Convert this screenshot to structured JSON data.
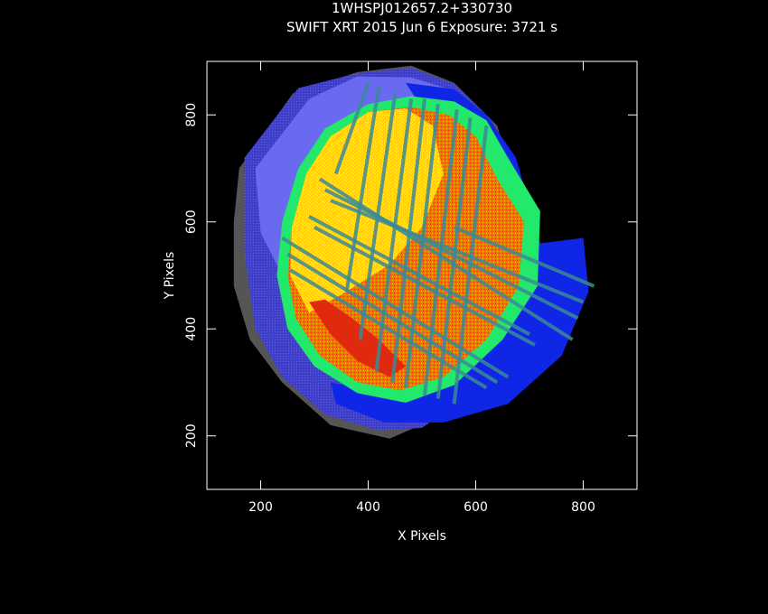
{
  "title": "1WHSPJ012657.2+330730",
  "subtitle": "SWIFT XRT   2015 Jun  6    Exposure: 3721 s",
  "colors": {
    "background": "#000000",
    "foreground": "#ffffff",
    "halo": "#555555",
    "outer_exposure": "#3e3ec8",
    "blue_ring": "#1026e6",
    "periwinkle": "#6a6af0",
    "green_ring": "#22e86c",
    "yellow": "#ffe600",
    "orange": "#e07a10",
    "red": "#e02a10",
    "stripe": "#3a8a96"
  },
  "chart_data": {
    "type": "heatmap",
    "description_kind": "exposure-map image",
    "xlabel": "X Pixels",
    "ylabel": "Y Pixels",
    "xlim": [
      100,
      900
    ],
    "ylim": [
      100,
      900
    ],
    "xticks": [
      200,
      400,
      600,
      800
    ],
    "yticks": [
      200,
      400,
      600,
      800
    ],
    "xtick_labels": [
      "200",
      "400",
      "600",
      "800"
    ],
    "ytick_labels": [
      "200",
      "400",
      "600",
      "800"
    ],
    "grid": false,
    "legend": false,
    "regions": [
      {
        "name": "halo",
        "color": "#555555",
        "polygon": [
          [
            160,
            700
          ],
          [
            260,
            840
          ],
          [
            380,
            880
          ],
          [
            480,
            892
          ],
          [
            560,
            860
          ],
          [
            640,
            780
          ],
          [
            680,
            640
          ],
          [
            660,
            460
          ],
          [
            600,
            330
          ],
          [
            520,
            230
          ],
          [
            440,
            195
          ],
          [
            330,
            220
          ],
          [
            240,
            300
          ],
          [
            180,
            380
          ],
          [
            150,
            480
          ],
          [
            150,
            600
          ]
        ]
      },
      {
        "name": "outer-exposure",
        "color": "#3e3ec8",
        "polygon": [
          [
            170,
            720
          ],
          [
            270,
            850
          ],
          [
            380,
            878
          ],
          [
            480,
            888
          ],
          [
            560,
            858
          ],
          [
            630,
            790
          ],
          [
            680,
            660
          ],
          [
            700,
            520
          ],
          [
            660,
            380
          ],
          [
            580,
            270
          ],
          [
            500,
            215
          ],
          [
            420,
            210
          ],
          [
            320,
            240
          ],
          [
            240,
            310
          ],
          [
            190,
            400
          ],
          [
            170,
            540
          ]
        ]
      },
      {
        "name": "periwinkle-field",
        "color": "#6a6af0",
        "polygon": [
          [
            190,
            700
          ],
          [
            290,
            830
          ],
          [
            380,
            872
          ],
          [
            480,
            870
          ],
          [
            545,
            850
          ],
          [
            590,
            810
          ],
          [
            560,
            650
          ],
          [
            500,
            500
          ],
          [
            420,
            420
          ],
          [
            330,
            420
          ],
          [
            250,
            480
          ],
          [
            200,
            580
          ]
        ]
      },
      {
        "name": "blue-ring",
        "color": "#1026e6",
        "polygon": [
          [
            470,
            860
          ],
          [
            560,
            848
          ],
          [
            620,
            800
          ],
          [
            675,
            720
          ],
          [
            720,
            560
          ],
          [
            800,
            570
          ],
          [
            810,
            470
          ],
          [
            760,
            350
          ],
          [
            660,
            260
          ],
          [
            540,
            225
          ],
          [
            430,
            225
          ],
          [
            340,
            260
          ],
          [
            330,
            300
          ],
          [
            430,
            280
          ],
          [
            560,
            300
          ],
          [
            640,
            380
          ],
          [
            680,
            480
          ],
          [
            640,
            620
          ],
          [
            560,
            720
          ]
        ]
      },
      {
        "name": "green-ring",
        "color": "#22e86c",
        "polygon": [
          [
            320,
            775
          ],
          [
            400,
            820
          ],
          [
            480,
            835
          ],
          [
            560,
            825
          ],
          [
            620,
            790
          ],
          [
            660,
            720
          ],
          [
            720,
            620
          ],
          [
            715,
            480
          ],
          [
            650,
            380
          ],
          [
            560,
            295
          ],
          [
            470,
            262
          ],
          [
            380,
            280
          ],
          [
            300,
            330
          ],
          [
            250,
            400
          ],
          [
            230,
            500
          ],
          [
            240,
            600
          ],
          [
            270,
            700
          ]
        ]
      },
      {
        "name": "orange-core",
        "color": "#e07a10",
        "polygon": [
          [
            330,
            760
          ],
          [
            400,
            805
          ],
          [
            480,
            815
          ],
          [
            550,
            800
          ],
          [
            600,
            760
          ],
          [
            640,
            680
          ],
          [
            690,
            600
          ],
          [
            680,
            480
          ],
          [
            620,
            380
          ],
          [
            540,
            310
          ],
          [
            460,
            285
          ],
          [
            380,
            300
          ],
          [
            310,
            350
          ],
          [
            265,
            420
          ],
          [
            250,
            500
          ],
          [
            258,
            590
          ],
          [
            285,
            690
          ]
        ]
      },
      {
        "name": "yellow-wedge",
        "color": "#ffe600",
        "polygon": [
          [
            330,
            760
          ],
          [
            400,
            805
          ],
          [
            470,
            812
          ],
          [
            520,
            780
          ],
          [
            540,
            690
          ],
          [
            500,
            590
          ],
          [
            440,
            520
          ],
          [
            360,
            470
          ],
          [
            290,
            430
          ],
          [
            255,
            500
          ],
          [
            258,
            590
          ],
          [
            285,
            690
          ]
        ]
      },
      {
        "name": "red-lower-left",
        "color": "#e02a10",
        "polygon": [
          [
            290,
            450
          ],
          [
            330,
            390
          ],
          [
            380,
            340
          ],
          [
            440,
            310
          ],
          [
            470,
            330
          ],
          [
            420,
            380
          ],
          [
            370,
            420
          ],
          [
            320,
            455
          ]
        ]
      }
    ],
    "stripes": [
      [
        [
          340,
          690
        ],
        [
          400,
          860
        ]
      ],
      [
        [
          360,
          470
        ],
        [
          420,
          855
        ]
      ],
      [
        [
          385,
          380
        ],
        [
          450,
          840
        ]
      ],
      [
        [
          415,
          320
        ],
        [
          480,
          830
        ]
      ],
      [
        [
          445,
          300
        ],
        [
          505,
          830
        ]
      ],
      [
        [
          470,
          290
        ],
        [
          530,
          820
        ]
      ],
      [
        [
          505,
          275
        ],
        [
          565,
          810
        ]
      ],
      [
        [
          530,
          270
        ],
        [
          590,
          795
        ]
      ],
      [
        [
          560,
          260
        ],
        [
          620,
          780
        ]
      ],
      [
        [
          240,
          570
        ],
        [
          660,
          310
        ]
      ],
      [
        [
          250,
          540
        ],
        [
          640,
          300
        ]
      ],
      [
        [
          255,
          510
        ],
        [
          620,
          290
        ]
      ],
      [
        [
          310,
          680
        ],
        [
          780,
          380
        ]
      ],
      [
        [
          320,
          660
        ],
        [
          790,
          420
        ]
      ],
      [
        [
          330,
          640
        ],
        [
          800,
          450
        ]
      ],
      [
        [
          290,
          610
        ],
        [
          700,
          390
        ]
      ],
      [
        [
          300,
          590
        ],
        [
          710,
          370
        ]
      ],
      [
        [
          560,
          590
        ],
        [
          820,
          480
        ]
      ]
    ]
  }
}
